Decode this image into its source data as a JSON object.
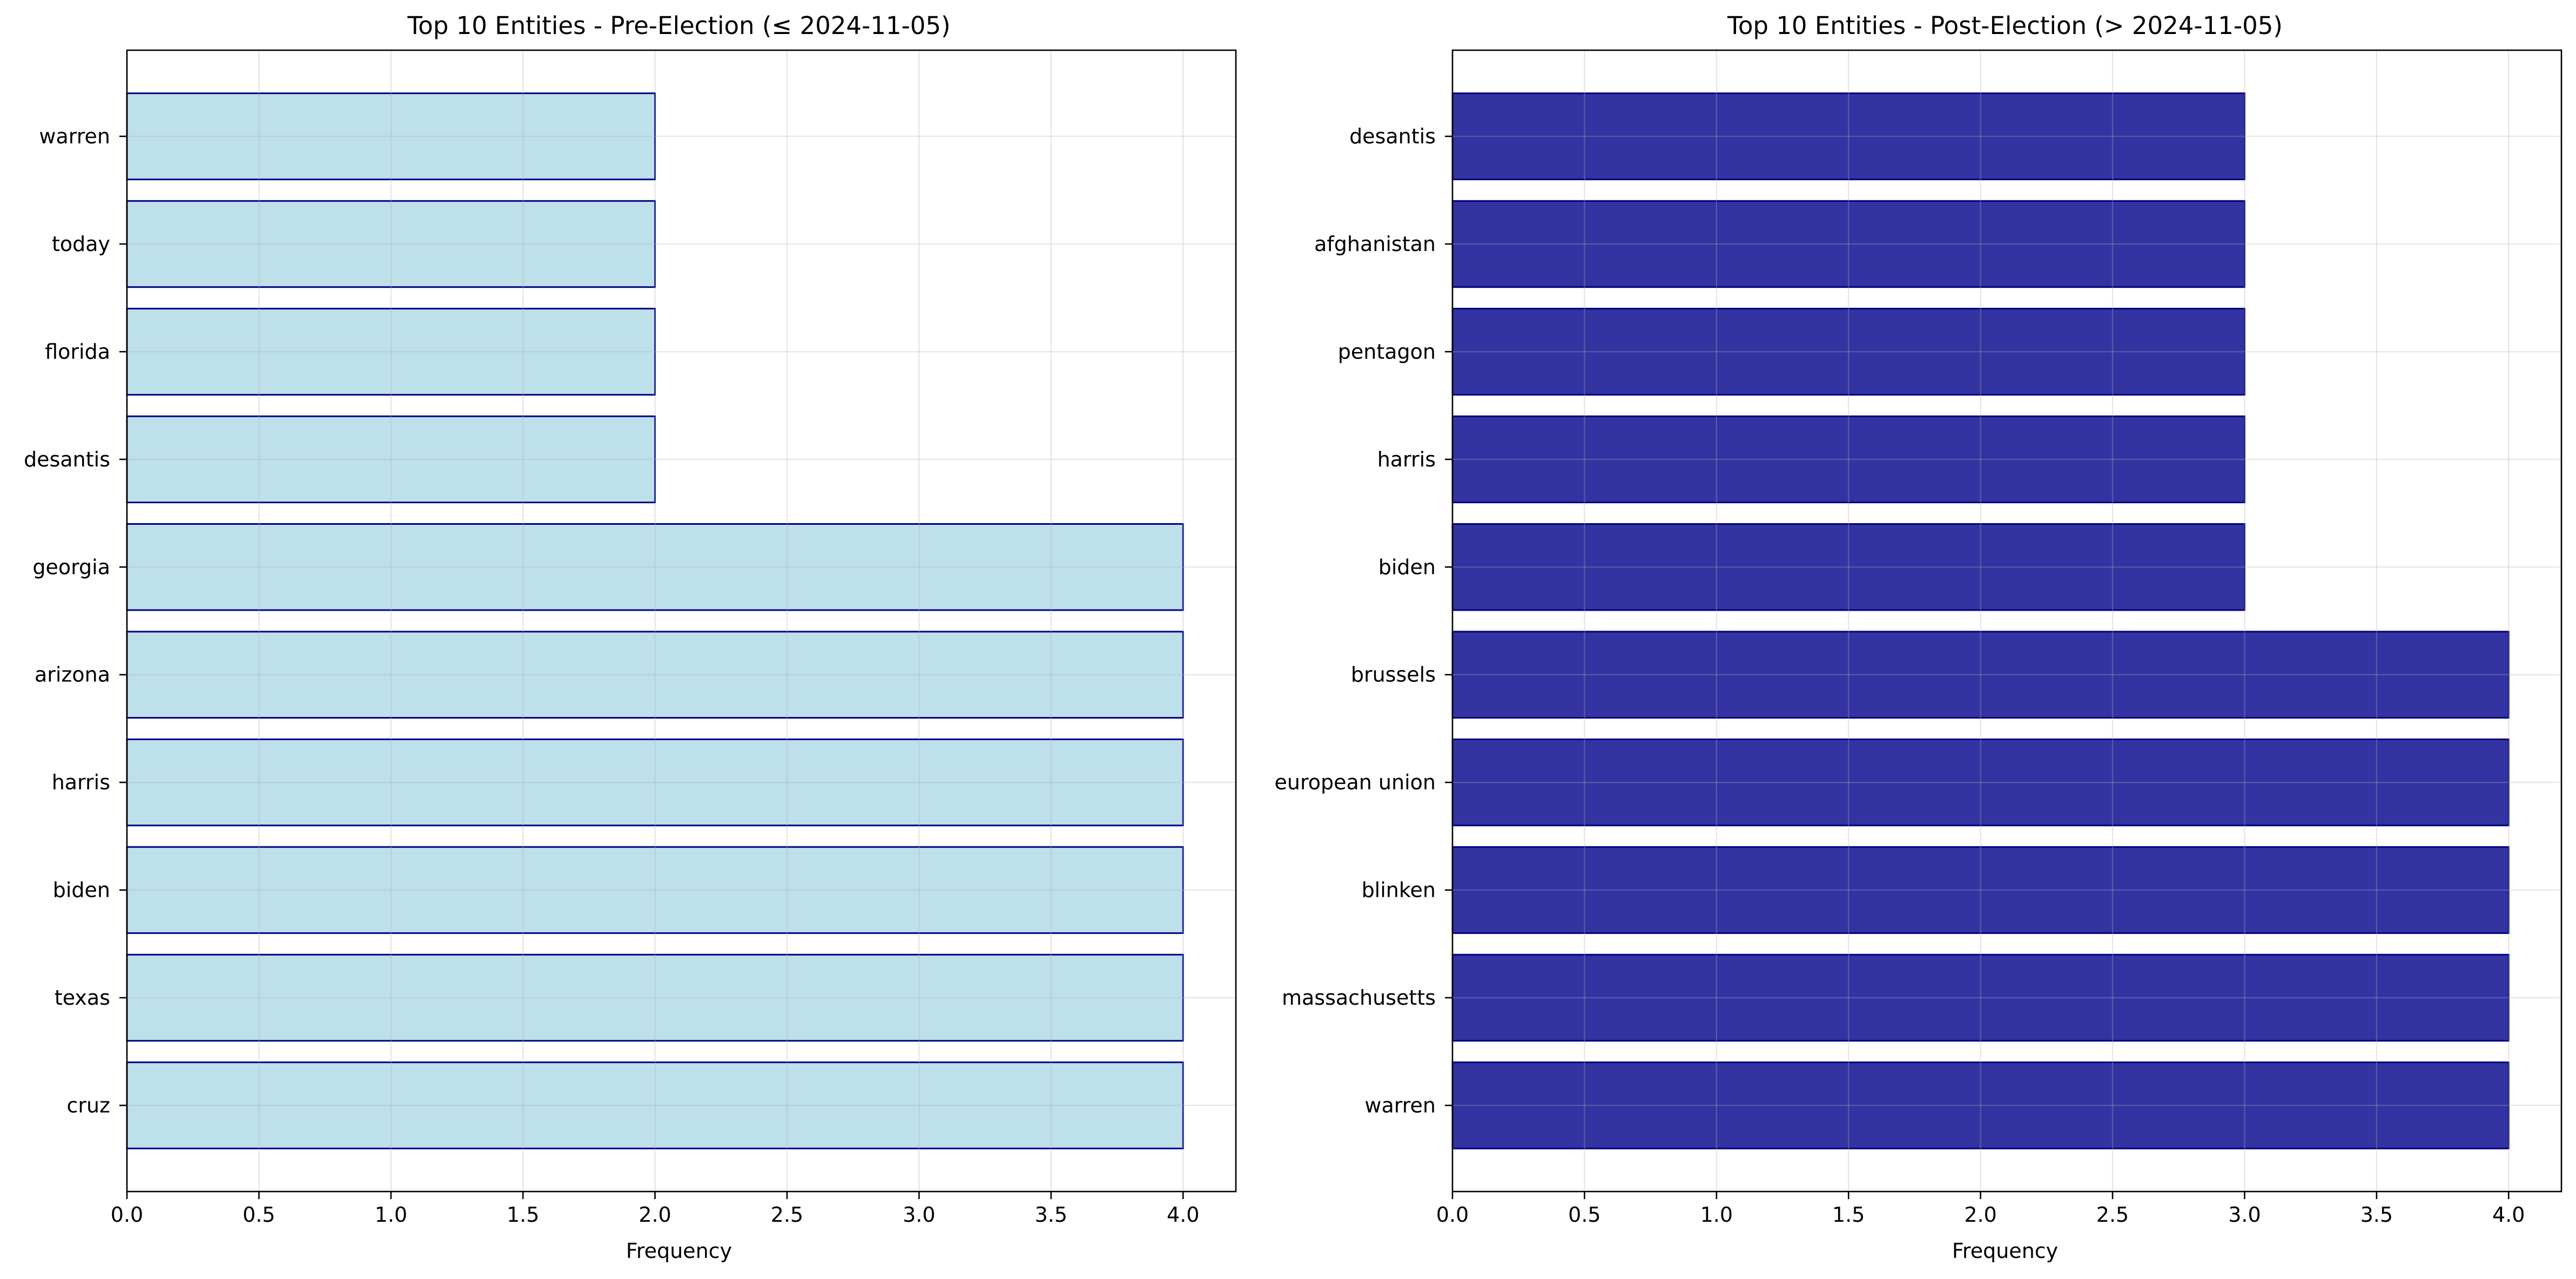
{
  "chart_data": [
    {
      "type": "bar",
      "orientation": "horizontal",
      "title": "Top 10 Entities - Pre-Election (≤ 2024-11-05)",
      "xlabel": "Frequency",
      "ylabel": "",
      "categories": [
        "cruz",
        "texas",
        "biden",
        "harris",
        "arizona",
        "georgia",
        "desantis",
        "florida",
        "today",
        "warren"
      ],
      "values": [
        4,
        4,
        4,
        4,
        4,
        4,
        2,
        2,
        2,
        2
      ],
      "xlim": [
        0,
        4.2
      ],
      "xticks": [
        "0.0",
        "0.5",
        "1.0",
        "1.5",
        "2.0",
        "2.5",
        "3.0",
        "3.5",
        "4.0"
      ],
      "grid": true,
      "bar_color": "#add8e6",
      "bar_edge_color": "#000080"
    },
    {
      "type": "bar",
      "orientation": "horizontal",
      "title": "Top 10 Entities - Post-Election (> 2024-11-05)",
      "xlabel": "Frequency",
      "ylabel": "",
      "categories": [
        "warren",
        "massachusetts",
        "blinken",
        "european union",
        "brussels",
        "biden",
        "harris",
        "pentagon",
        "afghanistan",
        "desantis"
      ],
      "values": [
        4,
        4,
        4,
        4,
        4,
        3,
        3,
        3,
        3,
        3
      ],
      "xlim": [
        0,
        4.2
      ],
      "xticks": [
        "0.0",
        "0.5",
        "1.0",
        "1.5",
        "2.0",
        "2.5",
        "3.0",
        "3.5",
        "4.0"
      ],
      "grid": true,
      "bar_color": "#00008b",
      "bar_edge_color": "#000080"
    }
  ]
}
